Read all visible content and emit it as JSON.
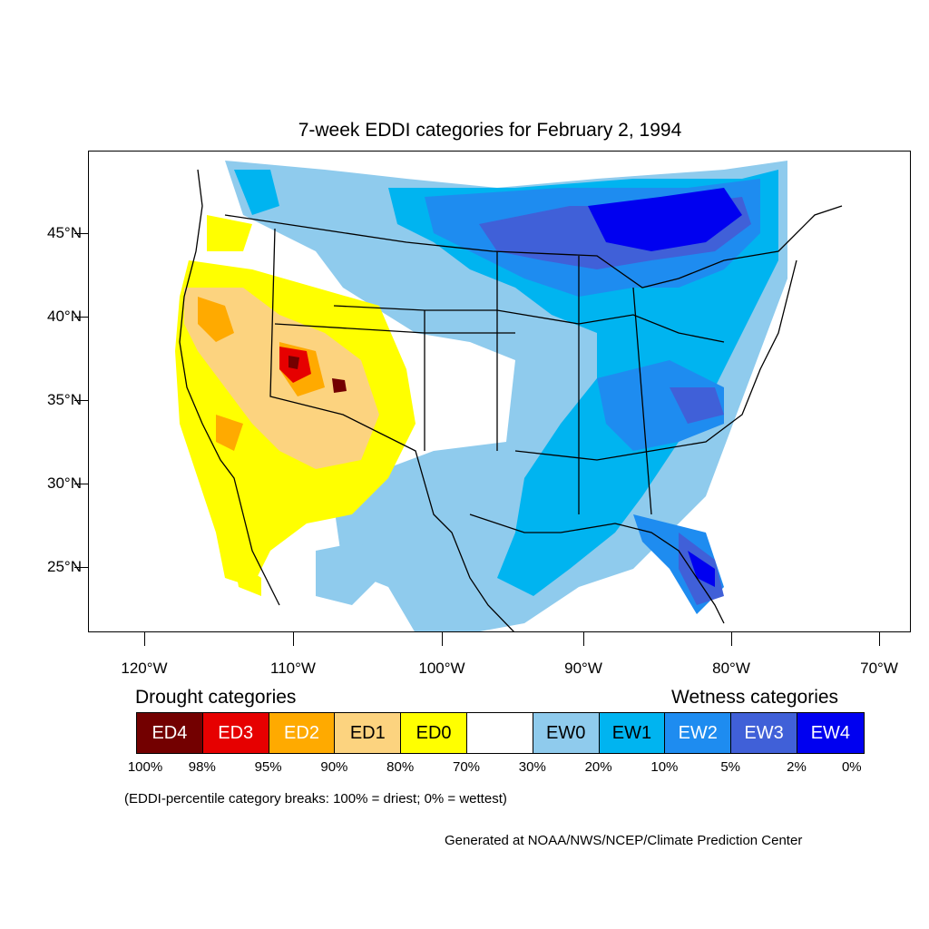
{
  "title": "7-week EDDI categories for February 2, 1994",
  "map": {
    "lat_labels": [
      "45°N",
      "40°N",
      "35°N",
      "30°N",
      "25°N"
    ],
    "lon_labels": [
      "120°W",
      "110°W",
      "100°W",
      "90°W",
      "80°W",
      "70°W"
    ]
  },
  "legend": {
    "drought_heading": "Drought categories",
    "wetness_heading": "Wetness categories",
    "categories": [
      {
        "label": "ED4",
        "color": "#730000",
        "text_color": "#ffffff"
      },
      {
        "label": "ED3",
        "color": "#e60000",
        "text_color": "#ffffff"
      },
      {
        "label": "ED2",
        "color": "#ffaa00",
        "text_color": "#ffffff"
      },
      {
        "label": "ED1",
        "color": "#fcd37f",
        "text_color": "#000000"
      },
      {
        "label": "ED0",
        "color": "#ffff00",
        "text_color": "#000000"
      },
      {
        "label": "",
        "color": "#ffffff",
        "text_color": "#000000"
      },
      {
        "label": "EW0",
        "color": "#8fcbed",
        "text_color": "#000000"
      },
      {
        "label": "EW1",
        "color": "#00b4f0",
        "text_color": "#000000"
      },
      {
        "label": "EW2",
        "color": "#1e8cf0",
        "text_color": "#ffffff"
      },
      {
        "label": "EW3",
        "color": "#4060d8",
        "text_color": "#ffffff"
      },
      {
        "label": "EW4",
        "color": "#0000f0",
        "text_color": "#ffffff"
      }
    ],
    "breaks": [
      "100%",
      "98%",
      "95%",
      "90%",
      "80%",
      "70%",
      "30%",
      "20%",
      "10%",
      "5%",
      "2%",
      "0%"
    ],
    "note": "(EDDI-percentile category breaks: 100% = driest; 0% = wettest)"
  },
  "credit": "Generated at NOAA/NWS/NCEP/Climate Prediction Center"
}
